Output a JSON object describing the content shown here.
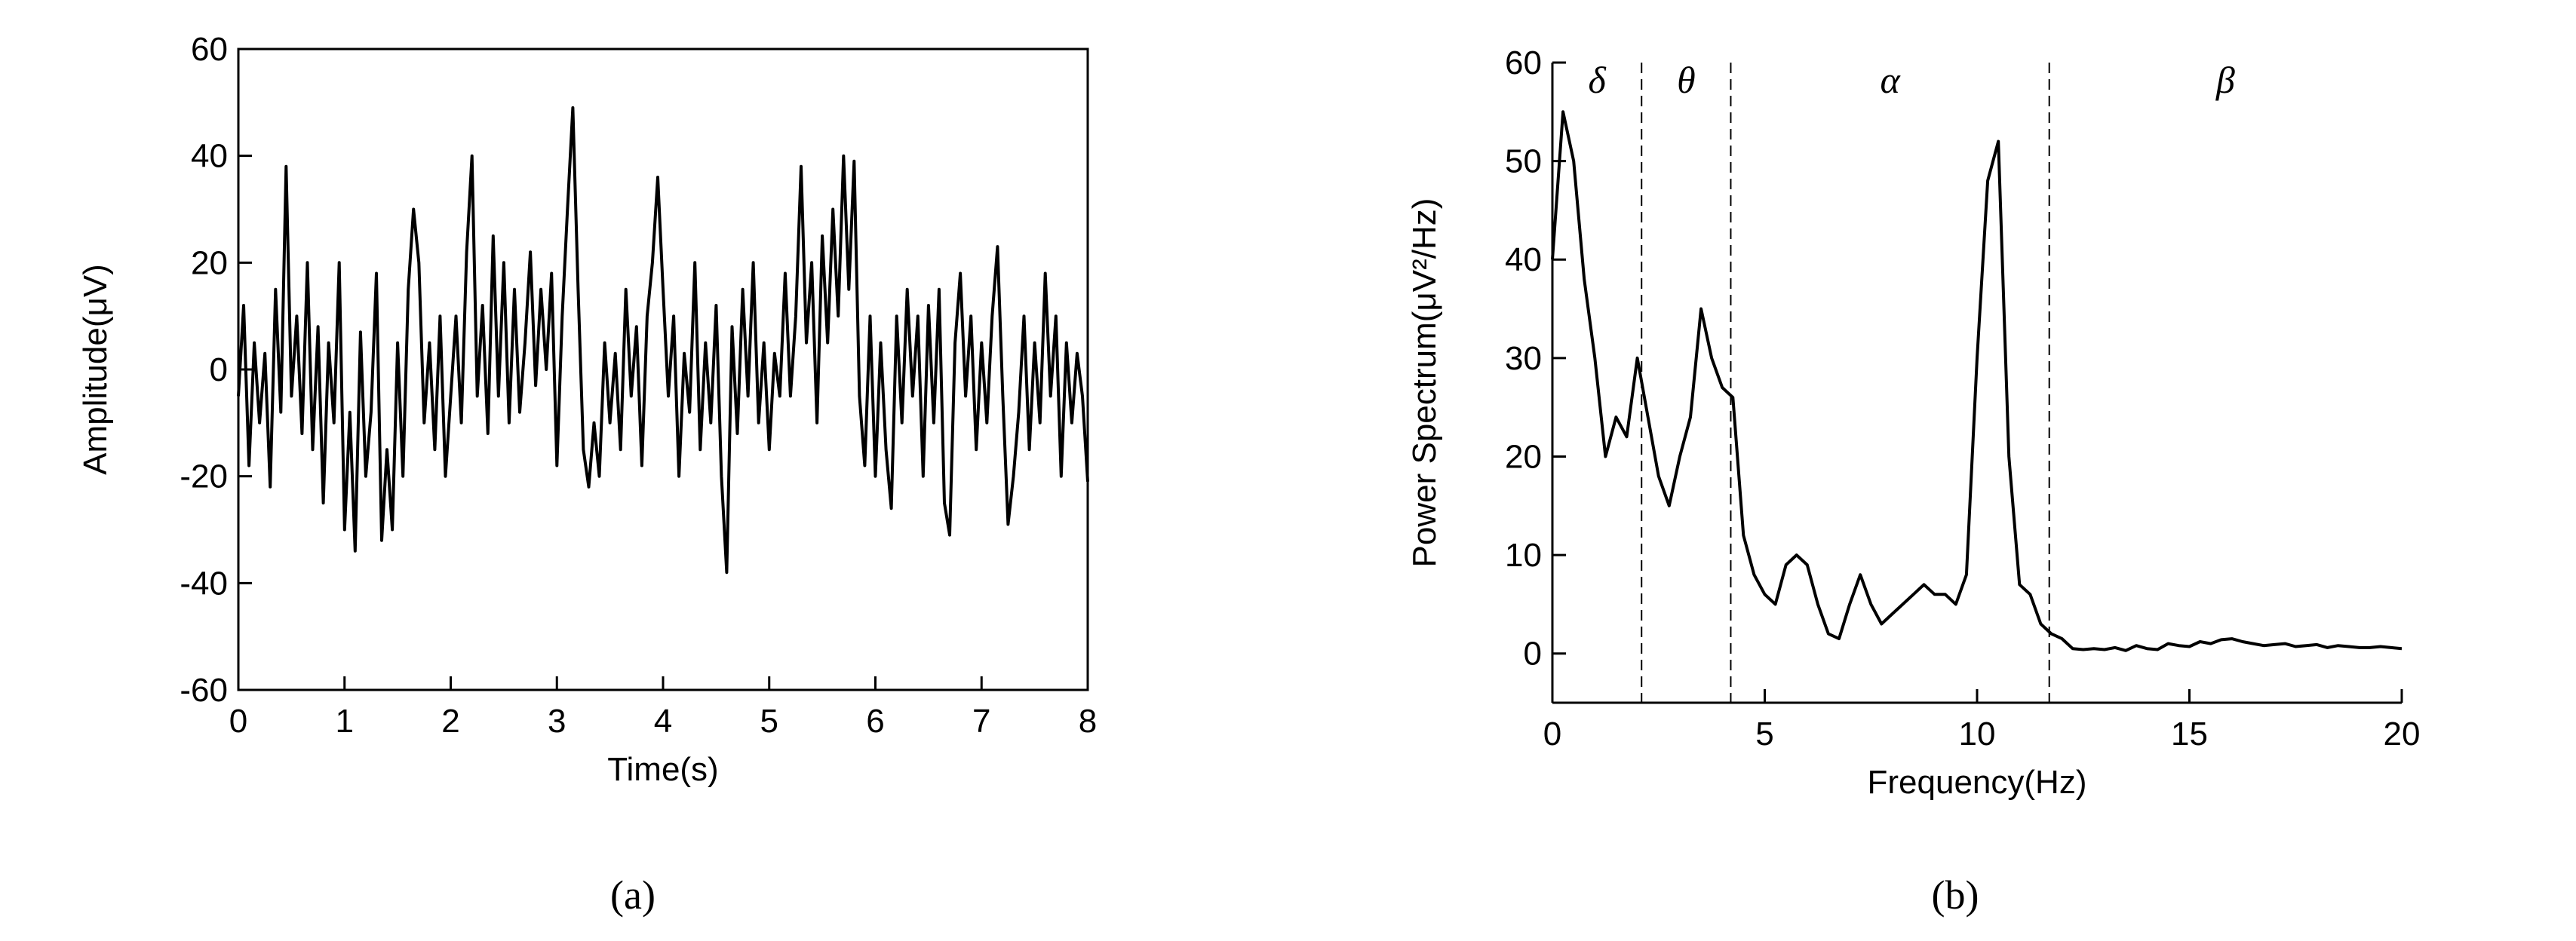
{
  "chart_data": [
    {
      "type": "line",
      "caption": "(a)",
      "xlabel": "Time(s)",
      "ylabel": "Amplitude(μV)",
      "color": "#000000",
      "box": true,
      "xlim": [
        0,
        8
      ],
      "xticks": [
        0,
        1,
        2,
        3,
        4,
        5,
        6,
        7,
        8
      ],
      "ylim": [
        -60,
        60
      ],
      "yticks": [
        -60,
        -40,
        -20,
        0,
        20,
        40,
        60
      ],
      "x": [
        0,
        0.05,
        0.1,
        0.15,
        0.2,
        0.25,
        0.3,
        0.35,
        0.4,
        0.45,
        0.5,
        0.55,
        0.6,
        0.65,
        0.7,
        0.75,
        0.8,
        0.85,
        0.9,
        0.95,
        1,
        1.05,
        1.1,
        1.15,
        1.2,
        1.25,
        1.3,
        1.35,
        1.4,
        1.45,
        1.5,
        1.55,
        1.6,
        1.65,
        1.7,
        1.75,
        1.8,
        1.85,
        1.9,
        1.95,
        2,
        2.05,
        2.1,
        2.15,
        2.2,
        2.25,
        2.3,
        2.35,
        2.4,
        2.45,
        2.5,
        2.55,
        2.6,
        2.65,
        2.7,
        2.75,
        2.8,
        2.85,
        2.9,
        2.95,
        3,
        3.05,
        3.1,
        3.15,
        3.2,
        3.25,
        3.3,
        3.35,
        3.4,
        3.45,
        3.5,
        3.55,
        3.6,
        3.65,
        3.7,
        3.75,
        3.8,
        3.85,
        3.9,
        3.95,
        4,
        4.05,
        4.1,
        4.15,
        4.2,
        4.25,
        4.3,
        4.35,
        4.4,
        4.45,
        4.5,
        4.55,
        4.6,
        4.65,
        4.7,
        4.75,
        4.8,
        4.85,
        4.9,
        4.95,
        5,
        5.05,
        5.1,
        5.15,
        5.2,
        5.25,
        5.3,
        5.35,
        5.4,
        5.45,
        5.5,
        5.55,
        5.6,
        5.65,
        5.7,
        5.75,
        5.8,
        5.85,
        5.9,
        5.95,
        6,
        6.05,
        6.1,
        6.15,
        6.2,
        6.25,
        6.3,
        6.35,
        6.4,
        6.45,
        6.5,
        6.55,
        6.6,
        6.65,
        6.7,
        6.75,
        6.8,
        6.85,
        6.9,
        6.95,
        7,
        7.05,
        7.1,
        7.15,
        7.2,
        7.25,
        7.3,
        7.35,
        7.4,
        7.45,
        7.5,
        7.55,
        7.6,
        7.65,
        7.7,
        7.75,
        7.8,
        7.85,
        7.9,
        7.95,
        8
      ],
      "values": [
        -5,
        12,
        -18,
        5,
        -10,
        3,
        -22,
        15,
        -8,
        38,
        -5,
        10,
        -12,
        20,
        -15,
        8,
        -25,
        5,
        -10,
        20,
        -30,
        -8,
        -34,
        7,
        -20,
        -8,
        18,
        -32,
        -15,
        -30,
        5,
        -20,
        15,
        30,
        20,
        -10,
        5,
        -15,
        10,
        -20,
        -5,
        10,
        -10,
        22,
        40,
        -5,
        12,
        -12,
        25,
        -5,
        20,
        -10,
        15,
        -8,
        5,
        22,
        -3,
        15,
        0,
        18,
        -18,
        10,
        30,
        49,
        15,
        -15,
        -22,
        -10,
        -20,
        5,
        -10,
        3,
        -15,
        15,
        -5,
        8,
        -18,
        10,
        20,
        36,
        15,
        -5,
        10,
        -20,
        3,
        -8,
        20,
        -15,
        5,
        -10,
        12,
        -20,
        -38,
        8,
        -12,
        15,
        -5,
        20,
        -10,
        5,
        -15,
        3,
        -5,
        18,
        -5,
        10,
        38,
        5,
        20,
        -10,
        25,
        5,
        30,
        10,
        40,
        15,
        39,
        -5,
        -18,
        10,
        -20,
        5,
        -15,
        -26,
        10,
        -10,
        15,
        -5,
        10,
        -20,
        12,
        -10,
        15,
        -25,
        -31,
        5,
        18,
        -5,
        10,
        -15,
        5,
        -10,
        10,
        23,
        -5,
        -29,
        -20,
        -8,
        10,
        -15,
        5,
        -10,
        18,
        -5,
        10,
        -20,
        5,
        -10,
        3,
        -5,
        -21
      ]
    },
    {
      "type": "line",
      "caption": "(b)",
      "xlabel": "Frequency(Hz)",
      "ylabel": "Power Spectrum(μV²/Hz)",
      "color": "#000000",
      "box": false,
      "xlim": [
        0,
        20
      ],
      "xticks": [
        0,
        5,
        10,
        15,
        20
      ],
      "ylim": [
        -5,
        60
      ],
      "yticks": [
        0,
        10,
        20,
        30,
        40,
        50,
        60
      ],
      "dividers": [
        2.1,
        4.2,
        11.7
      ],
      "bands": [
        "δ",
        "θ",
        "α",
        "β"
      ],
      "x": [
        0,
        0.25,
        0.5,
        0.75,
        1,
        1.25,
        1.5,
        1.75,
        2,
        2.25,
        2.5,
        2.75,
        3,
        3.25,
        3.5,
        3.75,
        4,
        4.25,
        4.5,
        4.75,
        5,
        5.25,
        5.5,
        5.75,
        6,
        6.25,
        6.5,
        6.75,
        7,
        7.25,
        7.5,
        7.75,
        8,
        8.25,
        8.5,
        8.75,
        9,
        9.25,
        9.5,
        9.75,
        10,
        10.25,
        10.5,
        10.75,
        11,
        11.25,
        11.5,
        11.75,
        12,
        12.25,
        12.5,
        12.75,
        13,
        13.25,
        13.5,
        13.75,
        14,
        14.25,
        14.5,
        14.75,
        15,
        15.25,
        15.5,
        15.75,
        16,
        16.25,
        16.5,
        16.75,
        17,
        17.25,
        17.5,
        17.75,
        18,
        18.25,
        18.5,
        18.75,
        19,
        19.25,
        19.5,
        19.75,
        20
      ],
      "values": [
        40,
        55,
        50,
        38,
        30,
        20,
        24,
        22,
        30,
        24,
        18,
        15,
        20,
        24,
        35,
        30,
        27,
        26,
        12,
        8,
        6,
        5,
        9,
        10,
        9,
        5,
        2,
        1.5,
        5,
        8,
        5,
        3,
        4,
        5,
        6,
        7,
        6,
        6,
        5,
        8,
        30,
        48,
        52,
        20,
        7,
        6,
        3,
        2,
        1.5,
        0.5,
        0.4,
        0.5,
        0.4,
        0.6,
        0.3,
        0.8,
        0.5,
        0.4,
        1,
        0.8,
        0.7,
        1.2,
        1,
        1.4,
        1.5,
        1.2,
        1,
        0.8,
        0.9,
        1,
        0.7,
        0.8,
        0.9,
        0.6,
        0.8,
        0.7,
        0.6,
        0.6,
        0.7,
        0.6,
        0.5
      ]
    }
  ]
}
